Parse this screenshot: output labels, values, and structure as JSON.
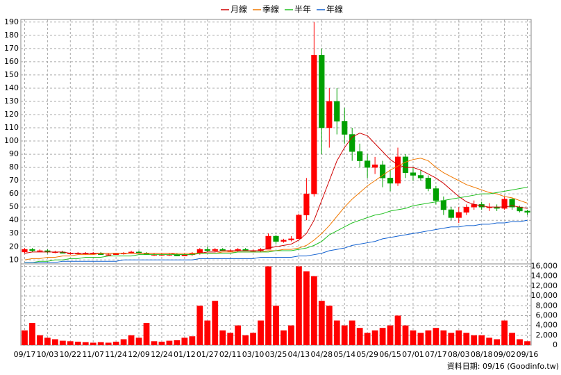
{
  "chart_data": [
    {
      "type": "candlestick",
      "categories": [
        "09/17",
        null,
        null,
        "10/03",
        null,
        null,
        "10/22",
        null,
        null,
        "11/07",
        null,
        null,
        "11/24",
        null,
        null,
        "12/09",
        null,
        null,
        "12/24",
        null,
        null,
        "01/12",
        null,
        null,
        "01/27",
        null,
        null,
        "02/11",
        null,
        null,
        "03/10",
        null,
        null,
        "03/25",
        null,
        null,
        "04/13",
        null,
        null,
        "04/28",
        null,
        null,
        "05/14",
        null,
        null,
        "05/29",
        null,
        null,
        "06/15",
        null,
        null,
        "07/01",
        null,
        null,
        "07/17",
        null,
        null,
        "08/03",
        null,
        null,
        "08/18",
        null,
        null,
        "09/02",
        null,
        null,
        "09/16"
      ],
      "open": [
        16,
        18,
        17,
        17,
        16,
        16,
        15,
        15,
        15,
        15,
        15,
        14,
        14,
        15,
        15,
        16,
        15,
        14,
        14,
        14,
        14,
        13,
        14,
        15,
        18,
        17,
        18,
        17,
        17,
        18,
        17,
        17,
        18,
        28,
        24,
        25,
        26,
        44,
        60,
        165,
        110,
        130,
        115,
        105,
        92,
        85,
        80,
        82,
        72,
        68,
        88,
        76,
        74,
        72,
        64,
        55,
        48,
        42,
        46,
        50,
        52,
        50,
        50,
        49,
        56,
        50,
        47
      ],
      "high": [
        19,
        19,
        18,
        18,
        17,
        17,
        16,
        16,
        16,
        16,
        16,
        15,
        15,
        16,
        17,
        17,
        16,
        15,
        15,
        15,
        15,
        15,
        16,
        19,
        20,
        19,
        19,
        18,
        19,
        19,
        18,
        19,
        30,
        29,
        26,
        28,
        45,
        72,
        190,
        170,
        140,
        140,
        125,
        110,
        98,
        90,
        88,
        85,
        78,
        95,
        90,
        80,
        78,
        74,
        66,
        58,
        50,
        50,
        52,
        55,
        54,
        53,
        52,
        58,
        57,
        51,
        48
      ],
      "low": [
        15,
        16,
        16,
        15,
        15,
        15,
        14,
        14,
        14,
        14,
        14,
        13,
        14,
        14,
        15,
        15,
        14,
        13,
        13,
        13,
        13,
        13,
        13,
        14,
        16,
        16,
        17,
        16,
        16,
        17,
        16,
        16,
        18,
        22,
        23,
        24,
        26,
        40,
        58,
        90,
        95,
        105,
        98,
        85,
        80,
        72,
        75,
        65,
        62,
        66,
        72,
        70,
        70,
        62,
        52,
        44,
        40,
        38,
        44,
        48,
        48,
        47,
        47,
        48,
        48,
        46,
        44
      ],
      "close": [
        18,
        17,
        17,
        16,
        16,
        15,
        15,
        15,
        15,
        15,
        14,
        14,
        15,
        15,
        16,
        15,
        14,
        14,
        14,
        14,
        13,
        14,
        15,
        18,
        17,
        18,
        17,
        17,
        18,
        17,
        17,
        18,
        28,
        24,
        25,
        26,
        44,
        60,
        165,
        110,
        130,
        115,
        105,
        92,
        85,
        80,
        82,
        72,
        68,
        88,
        76,
        74,
        72,
        64,
        55,
        48,
        42,
        46,
        50,
        52,
        50,
        50,
        49,
        56,
        50,
        47,
        46
      ],
      "up_color": "#ff0000",
      "down_color": "#00a000",
      "series": [
        {
          "name": "月線",
          "color": "#d00000",
          "values": [
            15,
            16,
            16,
            16,
            16,
            16,
            15,
            15,
            15,
            15,
            15,
            15,
            15,
            15,
            15,
            15,
            15,
            15,
            15,
            15,
            14,
            14,
            14,
            15,
            16,
            16,
            17,
            17,
            17,
            17,
            17,
            17,
            19,
            20,
            21,
            22,
            25,
            30,
            40,
            55,
            70,
            85,
            95,
            103,
            106,
            104,
            98,
            92,
            86,
            82,
            80,
            80,
            78,
            75,
            72,
            68,
            63,
            58,
            54,
            52,
            51,
            50,
            50,
            50,
            51,
            50,
            49
          ]
        },
        {
          "name": "季線",
          "color": "#f07800",
          "values": [
            10,
            11,
            11,
            12,
            12,
            13,
            13,
            14,
            14,
            14,
            15,
            15,
            15,
            15,
            15,
            15,
            15,
            15,
            15,
            15,
            15,
            15,
            15,
            15,
            15,
            15,
            16,
            16,
            16,
            16,
            16,
            16,
            17,
            17,
            18,
            18,
            19,
            21,
            25,
            30,
            36,
            43,
            50,
            56,
            61,
            66,
            70,
            74,
            78,
            81,
            84,
            86,
            87,
            85,
            80,
            76,
            73,
            70,
            67,
            65,
            63,
            61,
            60,
            58,
            57,
            55,
            53
          ]
        },
        {
          "name": "半年",
          "color": "#20c020",
          "values": [
            8,
            8,
            9,
            9,
            10,
            10,
            11,
            11,
            12,
            12,
            12,
            13,
            13,
            13,
            13,
            14,
            14,
            14,
            14,
            14,
            14,
            14,
            14,
            15,
            15,
            15,
            15,
            15,
            16,
            16,
            16,
            16,
            16,
            17,
            17,
            17,
            18,
            19,
            21,
            24,
            29,
            32,
            35,
            38,
            40,
            42,
            44,
            45,
            47,
            48,
            49,
            51,
            52,
            53,
            54,
            55,
            56,
            57,
            58,
            59,
            60,
            60,
            61,
            62,
            63,
            64,
            65
          ]
        },
        {
          "name": "年線",
          "color": "#1060d0",
          "values": [
            8,
            8,
            8,
            8,
            8,
            9,
            9,
            9,
            9,
            9,
            9,
            9,
            9,
            10,
            10,
            10,
            10,
            10,
            10,
            10,
            10,
            10,
            10,
            11,
            11,
            11,
            11,
            11,
            11,
            11,
            11,
            12,
            12,
            12,
            12,
            12,
            13,
            13,
            14,
            15,
            17,
            18,
            19,
            21,
            22,
            23,
            24,
            26,
            27,
            28,
            29,
            30,
            31,
            32,
            33,
            34,
            35,
            35,
            36,
            36,
            37,
            37,
            38,
            38,
            39,
            39,
            40
          ]
        }
      ],
      "ylim": [
        7,
        192
      ],
      "yticks": [
        10,
        20,
        30,
        40,
        50,
        60,
        70,
        80,
        90,
        100,
        110,
        120,
        130,
        140,
        150,
        160,
        170,
        180,
        190
      ],
      "grid": true,
      "legend": "top",
      "source": "資料日期: 09/16 (Goodinfo.tw)"
    },
    {
      "type": "bar",
      "color": "#ff0000",
      "values": [
        3000,
        4500,
        2000,
        1500,
        1200,
        900,
        800,
        700,
        600,
        500,
        600,
        500,
        700,
        1200,
        2000,
        1500,
        4500,
        800,
        700,
        900,
        1000,
        1500,
        1800,
        8000,
        5000,
        9000,
        3000,
        2500,
        4000,
        2000,
        2500,
        5000,
        16000,
        8000,
        3000,
        4000,
        16000,
        15000,
        14000,
        9000,
        8000,
        5000,
        4000,
        5000,
        3500,
        2500,
        3000,
        3500,
        4000,
        6000,
        4000,
        3000,
        2500,
        3000,
        3500,
        3000,
        2500,
        3000,
        2500,
        2000,
        2000,
        1500,
        1200,
        5000,
        2500,
        1200,
        800
      ],
      "ylim": [
        0,
        16500
      ],
      "yticks": [
        0,
        {
          "value": 2000,
          "label": "2,000"
        },
        {
          "value": 4000,
          "label": "4,000"
        },
        {
          "value": 6000,
          "label": "6,000"
        },
        {
          "value": 8000,
          "label": "8,000"
        },
        {
          "value": 10000,
          "label": "10,000"
        },
        {
          "value": 12000,
          "label": "12,000"
        },
        {
          "value": 14000,
          "label": "14,000"
        },
        {
          "value": 16000,
          "label": "16,000"
        }
      ],
      "grid": true
    }
  ]
}
